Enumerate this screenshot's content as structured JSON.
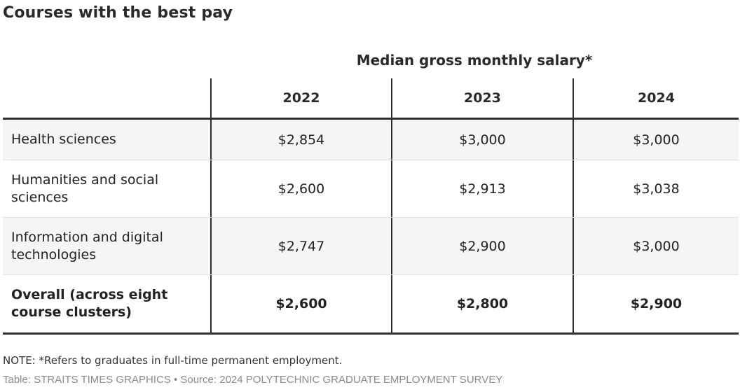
{
  "chart_data": {
    "type": "table",
    "title": "Courses with the best pay",
    "column_group_header": "Median gross monthly salary*",
    "columns": [
      "2022",
      "2023",
      "2024"
    ],
    "rows": [
      {
        "label": "Health sciences",
        "values": [
          "$2,854",
          "$3,000",
          "$3,000"
        ]
      },
      {
        "label": "Humanities and social sciences",
        "values": [
          "$2,600",
          "$2,913",
          "$3,038"
        ]
      },
      {
        "label": "Information and digital technologies",
        "values": [
          "$2,747",
          "$2,900",
          "$3,000"
        ]
      },
      {
        "label": "Overall (across eight course clusters)",
        "values": [
          "$2,600",
          "$2,800",
          "$2,900"
        ],
        "bold": true
      }
    ]
  },
  "footer": {
    "note": "NOTE: *Refers to graduates in full-time permanent employment.",
    "source": "Table: STRAITS TIMES GRAPHICS • Source: 2024 POLYTECHNIC GRADUATE EMPLOYMENT SURVEY"
  }
}
